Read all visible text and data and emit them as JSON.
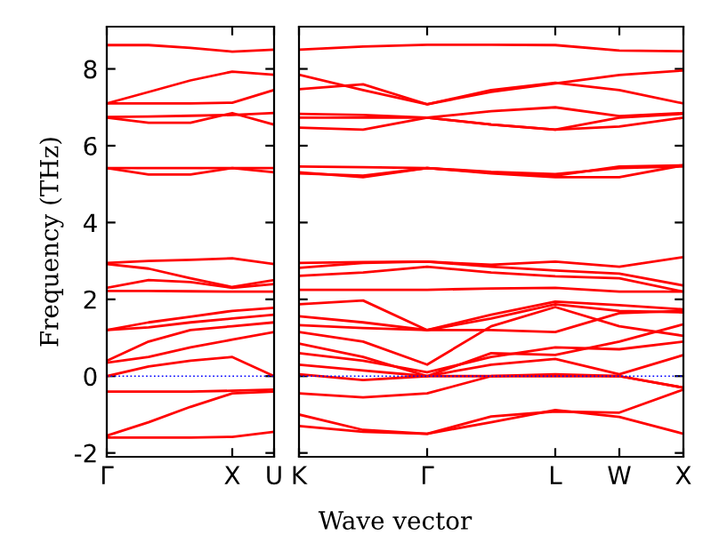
{
  "chart_data": [
    {
      "type": "line",
      "ylabel": "Frequency (THz)",
      "categories": [
        "Γ",
        null,
        null,
        "X",
        "U"
      ],
      "ylim": [
        -2.1,
        9.1
      ],
      "yticks": [
        -2,
        0,
        2,
        4,
        6,
        8
      ],
      "ref_lines": [
        {
          "axis": "y",
          "value": 0,
          "color": "#0000ff",
          "line_style": "dotted"
        }
      ],
      "series": [
        {
          "color": "#ff0000",
          "values": [
            8.62,
            8.62,
            8.55,
            8.45,
            8.5
          ]
        },
        {
          "color": "#ff0000",
          "values": [
            7.1,
            7.4,
            7.7,
            7.93,
            7.85
          ]
        },
        {
          "color": "#ff0000",
          "values": [
            7.1,
            7.1,
            7.1,
            7.12,
            7.45
          ]
        },
        {
          "color": "#ff0000",
          "values": [
            6.73,
            6.6,
            6.6,
            6.85,
            6.55
          ]
        },
        {
          "color": "#ff0000",
          "values": [
            6.75,
            6.76,
            6.78,
            6.8,
            6.85
          ]
        },
        {
          "color": "#ff0000",
          "values": [
            5.42,
            5.25,
            5.25,
            5.42,
            5.31
          ]
        },
        {
          "color": "#ff0000",
          "values": [
            5.42,
            5.42,
            5.42,
            5.42,
            5.42
          ]
        },
        {
          "color": "#ff0000",
          "values": [
            2.95,
            3.0,
            3.03,
            3.07,
            2.92
          ]
        },
        {
          "color": "#ff0000",
          "values": [
            2.92,
            2.8,
            2.55,
            2.32,
            2.5
          ]
        },
        {
          "color": "#ff0000",
          "values": [
            2.3,
            2.5,
            2.45,
            2.3,
            2.4
          ]
        },
        {
          "color": "#ff0000",
          "values": [
            2.22,
            2.22,
            2.21,
            2.2,
            2.2
          ]
        },
        {
          "color": "#ff0000",
          "values": [
            1.2,
            1.4,
            1.55,
            1.7,
            1.78
          ]
        },
        {
          "color": "#ff0000",
          "values": [
            1.2,
            1.27,
            1.4,
            1.5,
            1.6
          ]
        },
        {
          "color": "#ff0000",
          "values": [
            0.4,
            0.9,
            1.2,
            1.3,
            1.4
          ]
        },
        {
          "color": "#ff0000",
          "values": [
            0.35,
            0.5,
            0.75,
            0.95,
            1.15
          ]
        },
        {
          "color": "#ff0000",
          "values": [
            0.0,
            0.25,
            0.4,
            0.5,
            0.0
          ]
        },
        {
          "color": "#ff0000",
          "values": [
            -0.4,
            -0.4,
            -0.4,
            -0.38,
            -0.35
          ]
        },
        {
          "color": "#ff0000",
          "values": [
            -1.55,
            -1.2,
            -0.8,
            -0.45,
            -0.4
          ]
        },
        {
          "color": "#ff0000",
          "values": [
            -1.6,
            -1.6,
            -1.6,
            -1.58,
            -1.45
          ]
        }
      ]
    },
    {
      "type": "line",
      "xlabel": "Wave vector",
      "categories": [
        "K",
        null,
        "Γ",
        null,
        "L",
        "W",
        "X"
      ],
      "ylim": [
        -2.1,
        9.1
      ],
      "yticks": [
        {
          "value": -2,
          "label": null
        },
        {
          "value": 0,
          "label": null
        },
        {
          "value": 2,
          "label": null
        },
        {
          "value": 4,
          "label": null
        },
        {
          "value": 6,
          "label": null
        },
        {
          "value": 8,
          "label": null
        }
      ],
      "tick_labels": "x",
      "ref_lines": [
        {
          "axis": "y",
          "value": 0,
          "color": "#0000ff",
          "line_style": "dotted"
        }
      ],
      "series": [
        {
          "color": "#ff0000",
          "values": [
            8.5,
            8.58,
            8.63,
            8.63,
            8.62,
            8.48,
            8.46
          ]
        },
        {
          "color": "#ff0000",
          "values": [
            7.85,
            7.45,
            7.08,
            7.4,
            7.62,
            7.84,
            7.96
          ]
        },
        {
          "color": "#ff0000",
          "values": [
            7.47,
            7.6,
            7.08,
            7.45,
            7.64,
            7.45,
            7.1
          ]
        },
        {
          "color": "#ff0000",
          "values": [
            6.83,
            6.8,
            6.73,
            6.9,
            7.0,
            6.77,
            6.85
          ]
        },
        {
          "color": "#ff0000",
          "values": [
            6.73,
            6.73,
            6.73,
            6.55,
            6.42,
            6.73,
            6.83
          ]
        },
        {
          "color": "#ff0000",
          "values": [
            6.47,
            6.42,
            6.73,
            6.55,
            6.42,
            6.5,
            6.73
          ]
        },
        {
          "color": "#ff0000",
          "values": [
            5.46,
            5.44,
            5.42,
            5.3,
            5.22,
            5.46,
            5.49
          ]
        },
        {
          "color": "#ff0000",
          "values": [
            5.31,
            5.18,
            5.42,
            5.28,
            5.18,
            5.18,
            5.49
          ]
        },
        {
          "color": "#ff0000",
          "values": [
            5.28,
            5.22,
            5.42,
            5.32,
            5.26,
            5.42,
            5.46
          ]
        },
        {
          "color": "#ff0000",
          "values": [
            2.95,
            2.97,
            2.98,
            2.9,
            2.98,
            2.85,
            3.1
          ]
        },
        {
          "color": "#ff0000",
          "values": [
            2.82,
            2.95,
            2.98,
            2.85,
            2.75,
            2.67,
            2.36
          ]
        },
        {
          "color": "#ff0000",
          "values": [
            2.61,
            2.7,
            2.85,
            2.7,
            2.6,
            2.55,
            2.2
          ]
        },
        {
          "color": "#ff0000",
          "values": [
            2.25,
            2.25,
            2.25,
            2.28,
            2.3,
            2.2,
            2.2
          ]
        },
        {
          "color": "#ff0000",
          "values": [
            1.87,
            1.97,
            1.2,
            1.6,
            1.94,
            1.85,
            1.74
          ]
        },
        {
          "color": "#ff0000",
          "values": [
            1.56,
            1.4,
            1.2,
            1.5,
            1.87,
            1.7,
            1.66
          ]
        },
        {
          "color": "#ff0000",
          "values": [
            1.33,
            1.25,
            1.2,
            1.2,
            1.15,
            1.64,
            1.7
          ]
        },
        {
          "color": "#ff0000",
          "values": [
            1.15,
            0.9,
            0.3,
            1.3,
            1.8,
            1.3,
            1.05
          ]
        },
        {
          "color": "#ff0000",
          "values": [
            0.85,
            0.5,
            0.0,
            0.6,
            0.55,
            0.9,
            1.35
          ]
        },
        {
          "color": "#ff0000",
          "values": [
            0.6,
            0.4,
            0.1,
            0.5,
            0.75,
            0.7,
            0.9
          ]
        },
        {
          "color": "#ff0000",
          "values": [
            0.3,
            0.15,
            0.0,
            0.3,
            0.45,
            0.05,
            0.55
          ]
        },
        {
          "color": "#ff0000",
          "values": [
            0.05,
            -0.1,
            0.0,
            0.0,
            0.05,
            0.0,
            -0.3
          ]
        },
        {
          "color": "#ff0000",
          "values": [
            -0.45,
            -0.55,
            -0.45,
            0.0,
            0.0,
            0.0,
            -0.3
          ]
        },
        {
          "color": "#ff0000",
          "values": [
            -1.0,
            -1.4,
            -1.5,
            -1.05,
            -0.92,
            -0.95,
            -0.35
          ]
        },
        {
          "color": "#ff0000",
          "values": [
            -1.3,
            -1.45,
            -1.5,
            -1.2,
            -0.88,
            -1.06,
            -1.5
          ]
        }
      ]
    }
  ]
}
